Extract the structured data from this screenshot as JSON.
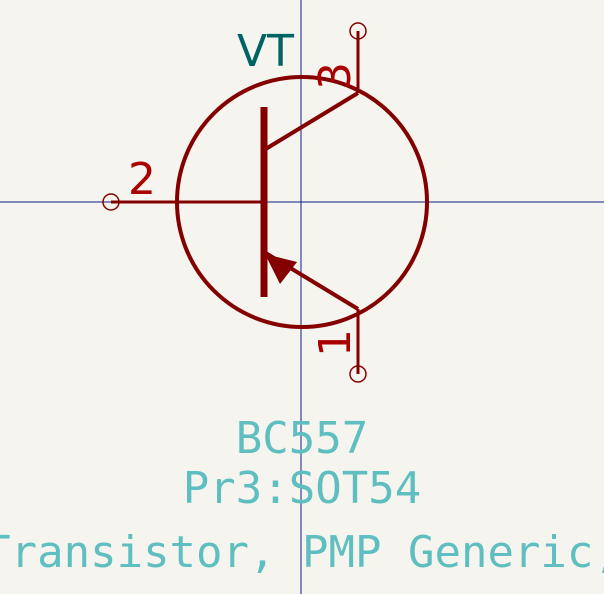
{
  "symbol": {
    "reference": "VT",
    "value": "BC557",
    "footprint": "Pr3:SOT54",
    "description": "Transistor, PMP Generic,"
  },
  "pins": [
    {
      "number": "1"
    },
    {
      "number": "2"
    },
    {
      "number": "3"
    }
  ],
  "colors": {
    "background": "#f5f4ef",
    "symbol_body": "#840000",
    "pin_number": "#a90000",
    "reference": "#006464",
    "field_text": "#5fbfc0",
    "crosshair": "#0a1e82"
  }
}
